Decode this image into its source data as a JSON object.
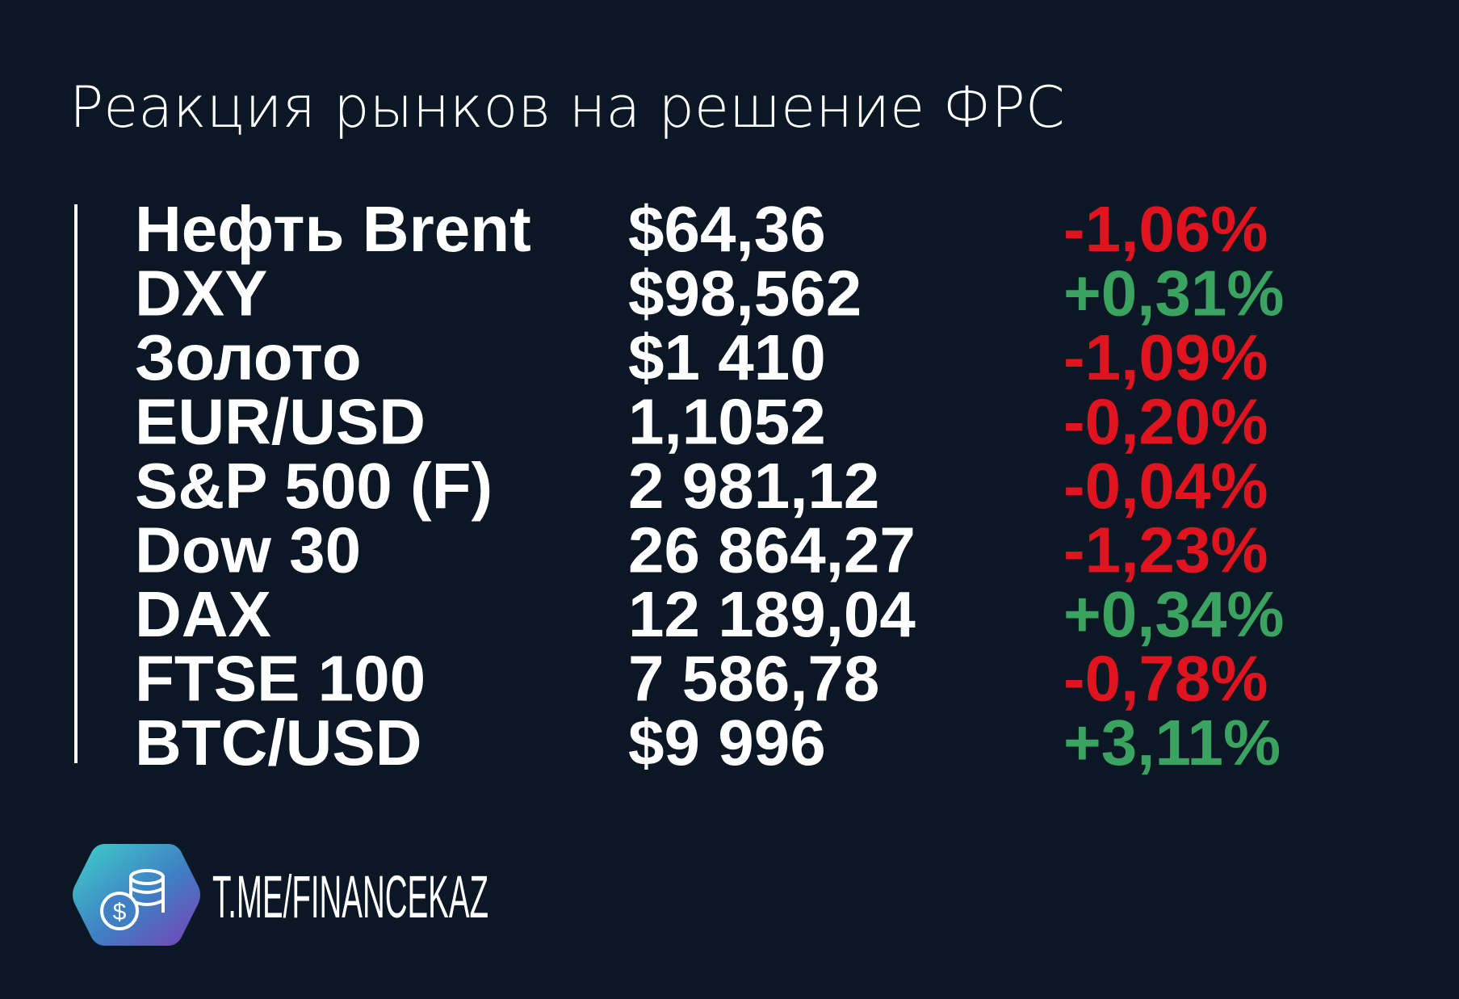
{
  "header": {
    "title": "Реакция рынков на решение ФРС"
  },
  "table": {
    "rows": [
      [
        "Нефть Brent",
        "$64,36",
        "-1,06%"
      ],
      [
        "DXY",
        "$98,562",
        "+0,31%"
      ],
      [
        "Золото",
        "$1 410",
        "-1,09%"
      ],
      [
        "EUR/USD",
        "1,1052",
        "-0,20%"
      ],
      [
        "S&P 500 (F)",
        "2 981,12",
        "-0,04%"
      ],
      [
        "Dow 30",
        "26 864,27",
        "-1,23%"
      ],
      [
        "DAX",
        "12 189,04",
        "+0,34%"
      ],
      [
        "FTSE 100",
        "7 586,78",
        "-0,78%"
      ],
      [
        "BTC/USD",
        "$9 996",
        "+3,11%"
      ]
    ]
  },
  "footer": {
    "link": "T.ME/FINANCEKAZ"
  }
}
